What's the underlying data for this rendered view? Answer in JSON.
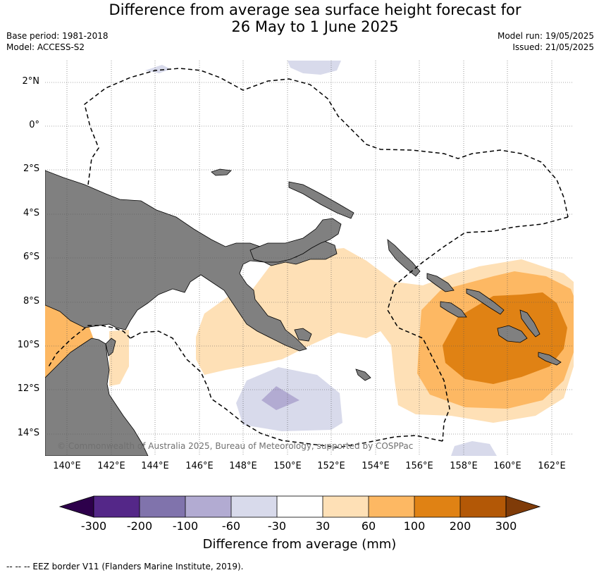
{
  "title_line1": "Difference from average sea surface height forecast for",
  "title_line2": "26 May to 1 June 2025",
  "meta": {
    "base_period": "Base period: 1981-2018",
    "model": "Model: ACCESS-S2",
    "model_run": "Model run: 19/05/2025",
    "issued": "Issued: 21/05/2025"
  },
  "map": {
    "lat_labels": [
      "2°N",
      "0°",
      "2°S",
      "4°S",
      "6°S",
      "8°S",
      "10°S",
      "12°S",
      "14°S"
    ],
    "lon_labels": [
      "140°E",
      "142°E",
      "144°E",
      "146°E",
      "148°E",
      "150°E",
      "152°E",
      "154°E",
      "156°E",
      "158°E",
      "160°E",
      "162°E"
    ],
    "land_color": "#808080",
    "copyright": "© Commonwealth of Australia 2025, Bureau of Meteorology, supported by COSPPac"
  },
  "colorbar": {
    "ticks": [
      "-300",
      "-200",
      "-100",
      "-60",
      "-30",
      "30",
      "60",
      "100",
      "200",
      "300"
    ],
    "colors": [
      "#2d004b",
      "#542788",
      "#8073ac",
      "#b2abd2",
      "#d8daeb",
      "#ffffff",
      "#fee0b6",
      "#fdb863",
      "#e08214",
      "#b35806",
      "#7f3b08"
    ],
    "title": "Difference from average (mm)"
  },
  "footnote": "--  --  -- EEZ border V11 (Flanders Marine Institute, 2019)."
}
